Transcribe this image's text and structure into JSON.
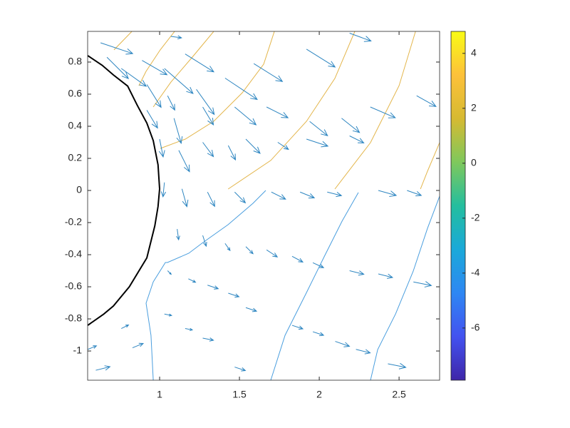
{
  "chart_data": {
    "type": "quiver",
    "xlim": [
      0.549,
      2.754
    ],
    "ylim": [
      -1.182,
      0.991
    ],
    "xticks": [
      1,
      1.5,
      2,
      2.5
    ],
    "yticks": [
      -1,
      -0.8,
      -0.6,
      -0.4,
      -0.2,
      0,
      0.2,
      0.4,
      0.6,
      0.8
    ],
    "arrow_color": "#2e86c1",
    "quiver": {
      "x": [
        0.63,
        0.67,
        0.76,
        0.89,
        1.03,
        1.16,
        0.92,
        1.05,
        1.23,
        1.41,
        1.59,
        1.92,
        2.19,
        1.07,
        0.92,
        1.09,
        1.27,
        1.47,
        1.67,
        1.94,
        2.14,
        2.32,
        2.61,
        1.0,
        1.12,
        1.27,
        1.43,
        1.54,
        1.74,
        1.92,
        2.19,
        1.03,
        1.14,
        1.3,
        1.47,
        1.7,
        1.88,
        2.05,
        2.37,
        2.55,
        1.11,
        1.27,
        1.41,
        1.54,
        1.67,
        1.83,
        1.96,
        2.19,
        2.37,
        2.59,
        1.05,
        1.18,
        1.3,
        1.43,
        1.54,
        1.83,
        1.96,
        2.1,
        2.23,
        2.43,
        0.6,
        0.76,
        0.83,
        0.55,
        1.03,
        1.16,
        1.27,
        1.47
      ],
      "y": [
        0.92,
        0.83,
        0.76,
        0.81,
        0.76,
        0.85,
        0.66,
        0.59,
        0.63,
        0.7,
        0.79,
        0.88,
        0.98,
        0.96,
        0.5,
        0.45,
        0.52,
        0.52,
        0.52,
        0.43,
        0.45,
        0.52,
        0.59,
        0.32,
        0.25,
        0.3,
        0.28,
        0.32,
        0.3,
        0.32,
        0.34,
        0.05,
        0.01,
        -0.01,
        -0.01,
        -0.01,
        -0.01,
        -0.01,
        0.0,
        0.0,
        -0.24,
        -0.28,
        -0.33,
        -0.35,
        -0.37,
        -0.41,
        -0.45,
        -0.5,
        -0.52,
        -0.57,
        -0.5,
        -0.55,
        -0.59,
        -0.64,
        -0.73,
        -0.84,
        -0.88,
        -0.94,
        -0.99,
        -1.08,
        -1.12,
        -0.86,
        -0.98,
        -0.99,
        -0.77,
        -0.86,
        -0.92,
        -1.1
      ],
      "u": [
        0.201,
        0.134,
        0.156,
        0.156,
        0.179,
        0.179,
        0.089,
        0.045,
        0.112,
        0.201,
        0.179,
        0.179,
        0.134,
        0.067,
        0.067,
        0.045,
        0.067,
        0.134,
        0.134,
        0.112,
        0.112,
        0.156,
        0.121,
        0.022,
        0.067,
        0.067,
        0.045,
        0.089,
        0.067,
        0.134,
        0.089,
        -0.009,
        0.031,
        0.045,
        0.067,
        0.089,
        0.089,
        0.089,
        0.112,
        0.089,
        0.009,
        0.022,
        0.031,
        0.045,
        0.067,
        0.067,
        0.067,
        0.089,
        0.089,
        0.112,
        0.022,
        0.045,
        0.067,
        0.067,
        0.067,
        0.067,
        0.067,
        0.089,
        0.089,
        0.112,
        0.089,
        0.045,
        0.067,
        0.054,
        0.045,
        0.045,
        0.067,
        0.067
      ],
      "v": [
        -0.067,
        -0.133,
        -0.111,
        -0.089,
        -0.156,
        -0.111,
        -0.142,
        -0.089,
        -0.156,
        -0.133,
        -0.111,
        -0.111,
        -0.049,
        -0.009,
        -0.111,
        -0.156,
        -0.111,
        -0.111,
        -0.067,
        -0.089,
        -0.089,
        -0.067,
        -0.067,
        -0.111,
        -0.133,
        -0.089,
        -0.089,
        -0.089,
        -0.044,
        -0.044,
        -0.044,
        -0.089,
        -0.111,
        -0.089,
        -0.067,
        -0.044,
        -0.036,
        -0.022,
        -0.031,
        -0.031,
        -0.067,
        -0.067,
        -0.044,
        -0.044,
        -0.044,
        -0.036,
        -0.031,
        -0.022,
        -0.022,
        -0.022,
        -0.022,
        -0.022,
        -0.022,
        -0.022,
        -0.022,
        -0.022,
        -0.022,
        -0.031,
        -0.022,
        -0.022,
        0.022,
        0.022,
        0.027,
        0.022,
        -0.009,
        -0.009,
        -0.013,
        -0.022
      ]
    },
    "boundary": {
      "color": "#000000",
      "x": [
        0.55,
        0.64,
        0.71,
        0.8,
        0.86,
        0.92,
        0.96,
        0.99,
        1.0,
        0.99,
        0.97,
        0.92,
        0.81,
        0.71,
        0.65,
        0.55
      ],
      "y": [
        0.84,
        0.78,
        0.72,
        0.65,
        0.53,
        0.42,
        0.31,
        0.16,
        0.01,
        -0.1,
        -0.22,
        -0.42,
        -0.6,
        -0.72,
        -0.77,
        -0.84
      ]
    },
    "contours": [
      {
        "color": "#e3b54a",
        "x": [
          0.826,
          0.714
        ],
        "y": [
          0.991,
          0.876
        ]
      },
      {
        "color": "#e3b54a",
        "x": [
          1.094,
          1.004,
          0.915,
          0.87
        ],
        "y": [
          0.991,
          0.876,
          0.742,
          0.653
        ]
      },
      {
        "color": "#e3b54a",
        "x": [
          1.339,
          1.205,
          1.071,
          0.96
        ],
        "y": [
          0.991,
          0.831,
          0.675,
          0.52
        ]
      },
      {
        "color": "#e3b54a",
        "x": [
          1.719,
          1.652,
          1.518,
          1.339,
          1.161,
          1.004
        ],
        "y": [
          0.991,
          0.787,
          0.609,
          0.431,
          0.32,
          0.262
        ]
      },
      {
        "color": "#e3b54a",
        "x": [
          2.223,
          2.098,
          1.92,
          1.696,
          1.429
        ],
        "y": [
          0.991,
          0.698,
          0.431,
          0.187,
          0.009
        ]
      },
      {
        "color": "#e3b54a",
        "x": [
          2.603,
          2.5,
          2.321,
          2.098
        ],
        "y": [
          0.991,
          0.653,
          0.298,
          0.009
        ]
      },
      {
        "color": "#e3b54a",
        "x": [
          2.754,
          2.678,
          2.634
        ],
        "y": [
          0.298,
          0.12,
          0.009
        ]
      },
      {
        "color": "#4a9ede",
        "x": [
          1.665,
          1.585,
          1.429,
          1.272,
          1.183,
          1.049,
          1.036,
          0.96,
          0.915,
          0.946,
          0.96
        ],
        "y": [
          0.0,
          -0.08,
          -0.213,
          -0.324,
          -0.391,
          -0.449,
          -0.449,
          -0.569,
          -0.702,
          -0.902,
          -1.182
        ]
      },
      {
        "color": "#4a9ede",
        "x": [
          2.245,
          2.143,
          2.031,
          1.92,
          1.786,
          1.696
        ],
        "y": [
          -0.013,
          -0.191,
          -0.413,
          -0.636,
          -0.902,
          -1.182
        ]
      },
      {
        "color": "#4a9ede",
        "x": [
          2.754,
          2.678,
          2.589,
          2.478,
          2.366,
          2.321
        ],
        "y": [
          -0.036,
          -0.236,
          -0.502,
          -0.769,
          -0.991,
          -1.182
        ]
      }
    ],
    "colorbar": {
      "clim": [
        -7.9,
        4.8
      ],
      "ticks": [
        -6,
        -4,
        -2,
        0,
        2,
        4
      ],
      "colormap": [
        "#3e26a8",
        "#4352f0",
        "#2e87f3",
        "#1aa9d9",
        "#24be9e",
        "#7fc85c",
        "#d6ba32",
        "#fdc13a",
        "#f9fb15"
      ]
    }
  }
}
